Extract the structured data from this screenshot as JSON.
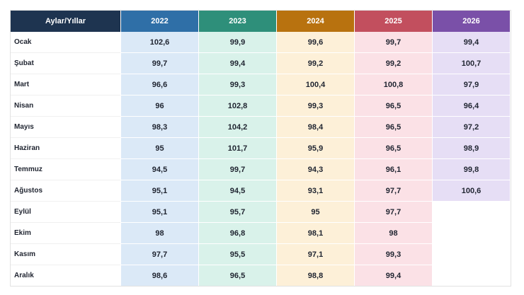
{
  "table": {
    "header": {
      "label": "Aylar/Yıllar",
      "years": [
        "2022",
        "2023",
        "2024",
        "2025",
        "2026"
      ]
    },
    "colors": {
      "header_first": "#1e3450",
      "headers": [
        "#2f6fa7",
        "#2e8f7a",
        "#b8720f",
        "#c24f5e",
        "#7a50a8"
      ],
      "cells": [
        "#dbe9f7",
        "#d9f2ea",
        "#fdf0d8",
        "#fbe1e6",
        "#e6def5"
      ]
    },
    "rows": [
      {
        "month": "Ocak",
        "values": [
          "102,6",
          "99,9",
          "99,6",
          "99,7",
          "99,4"
        ]
      },
      {
        "month": "Şubat",
        "values": [
          "99,7",
          "99,4",
          "99,2",
          "99,2",
          "100,7"
        ]
      },
      {
        "month": "Mart",
        "values": [
          "96,6",
          "99,3",
          "100,4",
          "100,8",
          "97,9"
        ]
      },
      {
        "month": "Nisan",
        "values": [
          "96",
          "102,8",
          "99,3",
          "96,5",
          "96,4"
        ]
      },
      {
        "month": "Mayıs",
        "values": [
          "98,3",
          "104,2",
          "98,4",
          "96,5",
          "97,2"
        ]
      },
      {
        "month": "Haziran",
        "values": [
          "95",
          "101,7",
          "95,9",
          "96,5",
          "98,9"
        ]
      },
      {
        "month": "Temmuz",
        "values": [
          "94,5",
          "99,7",
          "94,3",
          "96,1",
          "99,8"
        ]
      },
      {
        "month": "Ağustos",
        "values": [
          "95,1",
          "94,5",
          "93,1",
          "97,7",
          "100,6"
        ]
      },
      {
        "month": "Eylül",
        "values": [
          "95,1",
          "95,7",
          "95",
          "97,7",
          ""
        ]
      },
      {
        "month": "Ekim",
        "values": [
          "98",
          "96,8",
          "98,1",
          "98",
          ""
        ]
      },
      {
        "month": "Kasım",
        "values": [
          "97,7",
          "95,5",
          "97,1",
          "99,3",
          ""
        ]
      },
      {
        "month": "Aralık",
        "values": [
          "98,6",
          "96,5",
          "98,8",
          "99,4",
          ""
        ]
      }
    ]
  }
}
